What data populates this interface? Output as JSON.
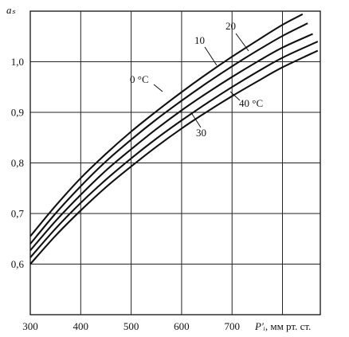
{
  "chart_data": {
    "type": "line",
    "ylabel": "aₛ",
    "xlabel_var": "P′ᵢ",
    "xlabel_units": ", мм рт. ст.",
    "xlim": [
      300,
      875
    ],
    "ylim": [
      0.5,
      1.1
    ],
    "x_ticks": [
      300,
      400,
      500,
      600,
      700
    ],
    "x_tick_labels": [
      "300",
      "400",
      "500",
      "600",
      "700"
    ],
    "y_ticks": [
      0.6,
      0.7,
      0.8,
      0.9,
      1.0
    ],
    "y_tick_labels": [
      "0,6",
      "0,7",
      "0,8",
      "0,9",
      "1,0"
    ],
    "grid": true,
    "series": [
      {
        "name": "0 °C",
        "x": [
          300,
          350,
          400,
          450,
          500,
          550,
          600,
          650,
          700,
          750,
          800,
          840
        ],
        "y": [
          0.655,
          0.715,
          0.77,
          0.818,
          0.862,
          0.902,
          0.94,
          0.976,
          1.01,
          1.042,
          1.073,
          1.094
        ]
      },
      {
        "name": "10",
        "x": [
          300,
          350,
          400,
          450,
          500,
          550,
          600,
          650,
          700,
          750,
          800,
          850
        ],
        "y": [
          0.64,
          0.7,
          0.754,
          0.803,
          0.846,
          0.886,
          0.923,
          0.958,
          0.991,
          1.022,
          1.051,
          1.076
        ]
      },
      {
        "name": "20",
        "x": [
          300,
          350,
          400,
          450,
          500,
          550,
          600,
          650,
          700,
          750,
          800,
          860
        ],
        "y": [
          0.627,
          0.685,
          0.737,
          0.785,
          0.827,
          0.867,
          0.904,
          0.938,
          0.97,
          1.0,
          1.028,
          1.055
        ]
      },
      {
        "name": "30",
        "x": [
          300,
          350,
          400,
          450,
          500,
          550,
          600,
          650,
          700,
          750,
          800,
          870
        ],
        "y": [
          0.613,
          0.67,
          0.721,
          0.767,
          0.809,
          0.848,
          0.884,
          0.918,
          0.95,
          0.98,
          1.008,
          1.04
        ]
      },
      {
        "name": "40 °C",
        "x": [
          300,
          350,
          400,
          450,
          500,
          550,
          600,
          650,
          700,
          750,
          800,
          870
        ],
        "y": [
          0.6,
          0.656,
          0.706,
          0.752,
          0.793,
          0.832,
          0.868,
          0.901,
          0.932,
          0.961,
          0.989,
          1.022
        ]
      }
    ]
  }
}
